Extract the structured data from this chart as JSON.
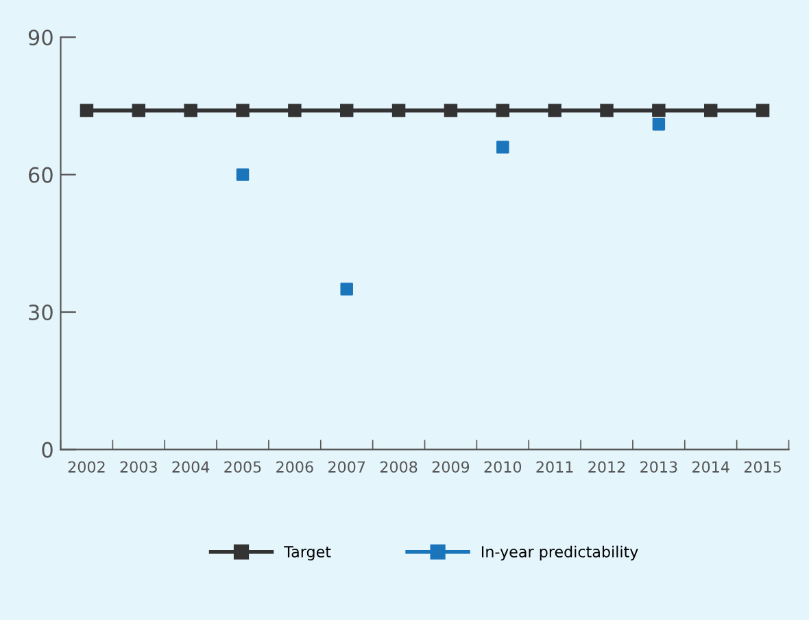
{
  "chart_data": {
    "type": "line",
    "categories": [
      "2002",
      "2003",
      "2004",
      "2005",
      "2006",
      "2007",
      "2008",
      "2009",
      "2010",
      "2011",
      "2012",
      "2013",
      "2014",
      "2015"
    ],
    "series": [
      {
        "name": "Target",
        "color": "#333333",
        "values": [
          74,
          74,
          74,
          74,
          74,
          74,
          74,
          74,
          74,
          74,
          74,
          74,
          74,
          74
        ]
      },
      {
        "name": "In-year predictability",
        "color": "#1b75bb",
        "type": "scatter",
        "values": [
          null,
          null,
          null,
          60,
          null,
          35,
          null,
          null,
          66,
          null,
          null,
          71,
          null,
          null
        ]
      }
    ],
    "ylim": [
      0,
      90
    ],
    "yticks": [
      0,
      30,
      60,
      90
    ],
    "grid": false,
    "legend": "bottom",
    "marker": "square"
  }
}
